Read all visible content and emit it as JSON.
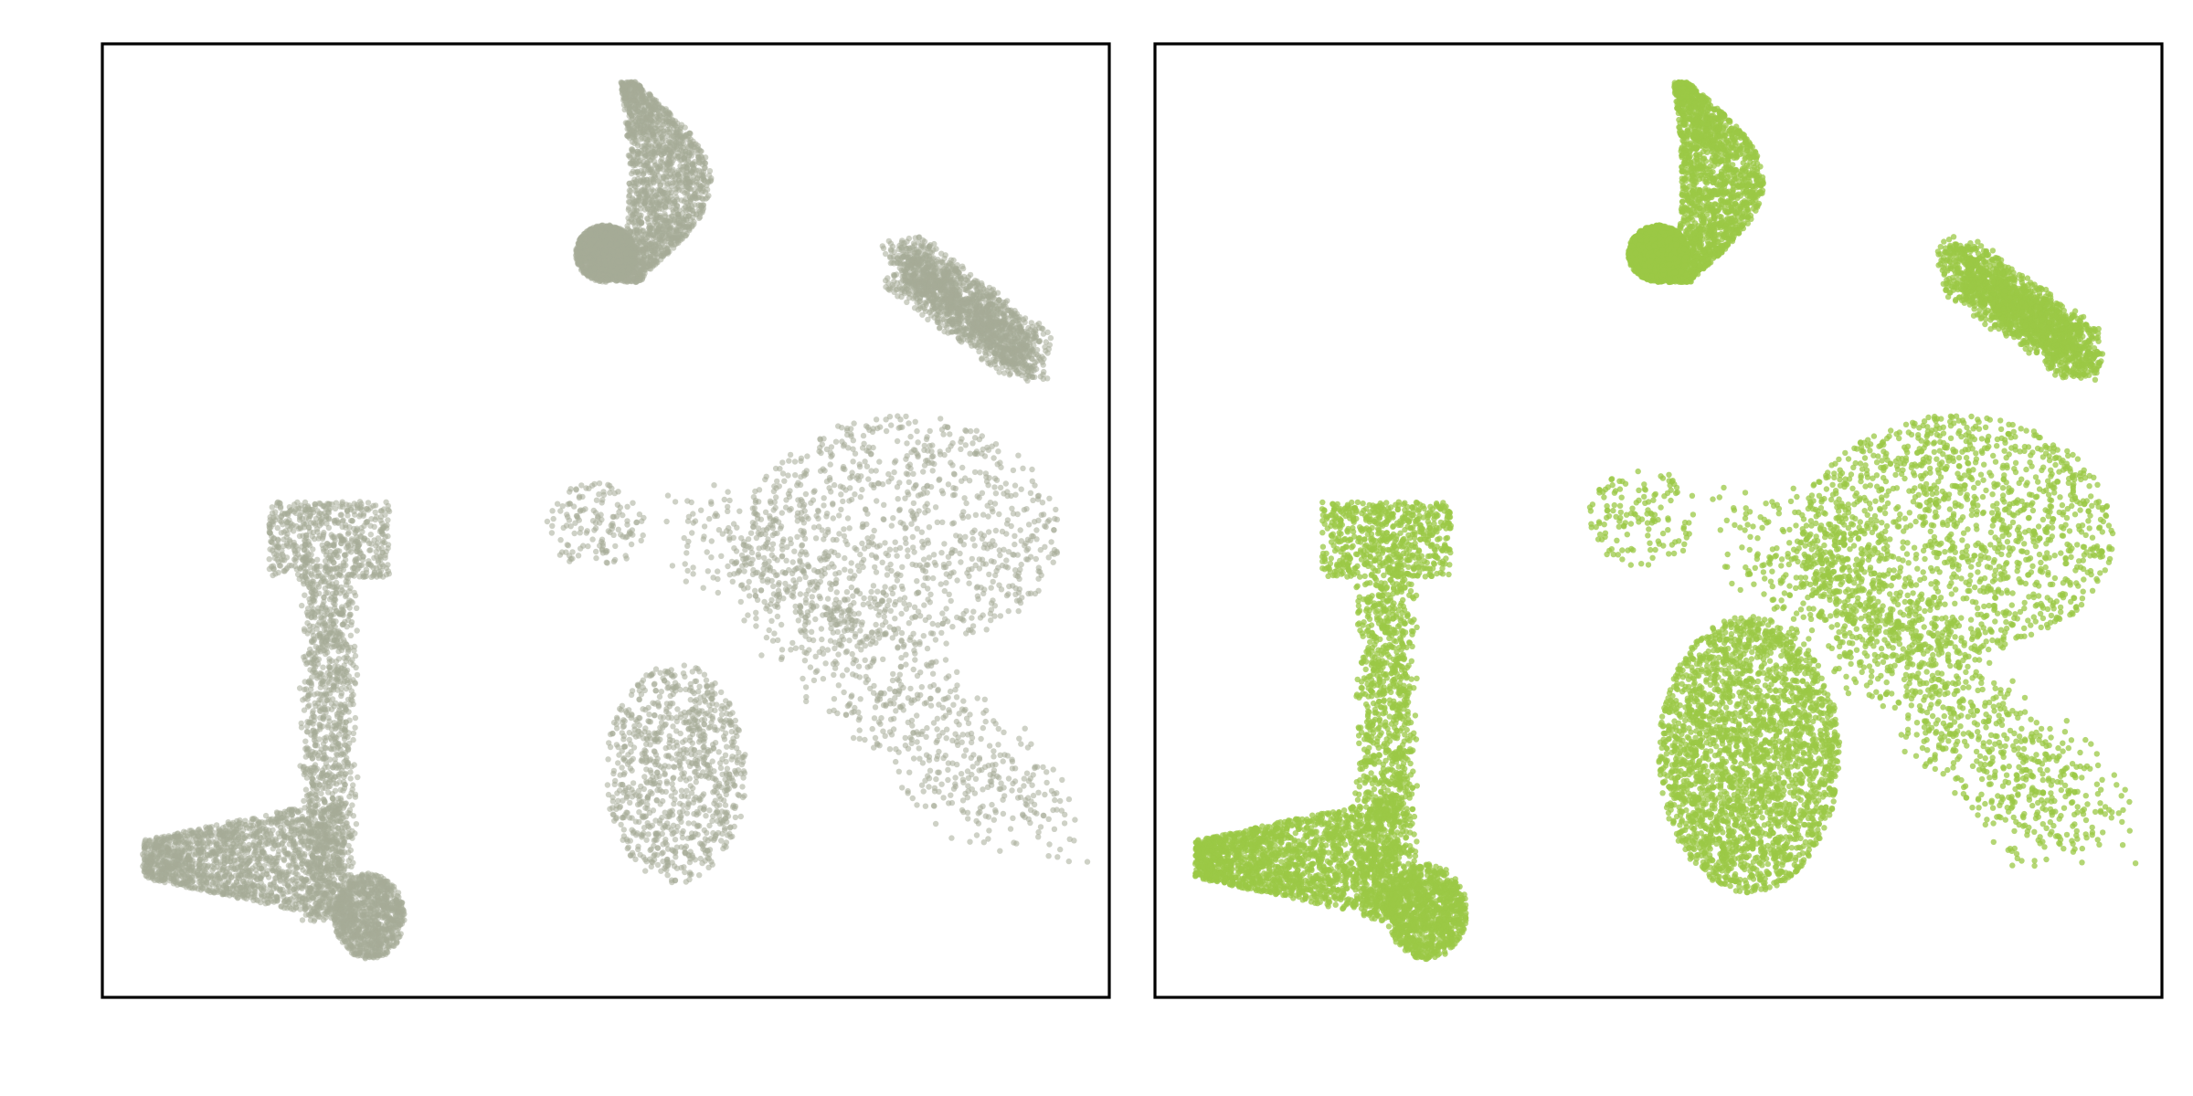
{
  "chart_data": [
    {
      "type": "scatter",
      "title": "",
      "xlabel": "",
      "ylabel": "",
      "xlim": [
        0,
        100
      ],
      "ylim": [
        0,
        100
      ],
      "grid": false,
      "axes_ticks": false,
      "point_color": "#a5ab97",
      "point_opacity": 0.55,
      "series": [
        {
          "clusters": [
            {
              "shape": "top-crescent",
              "x": [
                48,
                60
              ],
              "y": [
                75,
                96
              ],
              "density": "dense"
            },
            {
              "shape": "top-crescent-tail",
              "x": [
                47,
                53
              ],
              "y": [
                75,
                81
              ],
              "density": "dense"
            },
            {
              "shape": "upper-right-arm",
              "x": [
                77,
                94
              ],
              "y": [
                60,
                78
              ],
              "density": "dense"
            },
            {
              "shape": "right-main-lobe",
              "x": [
                55,
                96
              ],
              "y": [
                15,
                62
              ],
              "density": "dense"
            },
            {
              "shape": "middle-lower-oval",
              "x": [
                50,
                64
              ],
              "y": [
                12,
                35
              ],
              "density": "medium"
            },
            {
              "shape": "small-islands",
              "x": [
                44,
                54
              ],
              "y": [
                45,
                54
              ],
              "density": "sparse"
            },
            {
              "shape": "left-column",
              "x": [
                15,
                30
              ],
              "y": [
                8,
                52
              ],
              "density": "dense"
            },
            {
              "shape": "bottom-left-fan",
              "x": [
                4,
                24
              ],
              "y": [
                8,
                21
              ],
              "density": "dense"
            },
            {
              "shape": "bottom-small-hook",
              "x": [
                23,
                30
              ],
              "y": [
                4,
                13
              ],
              "density": "medium"
            }
          ]
        }
      ]
    },
    {
      "type": "scatter",
      "title": "",
      "xlabel": "",
      "ylabel": "",
      "xlim": [
        0,
        100
      ],
      "ylim": [
        0,
        100
      ],
      "grid": false,
      "axes_ticks": false,
      "point_color": "#9bc846",
      "point_opacity": 0.75,
      "series": [
        {
          "clusters": [
            {
              "shape": "top-crescent",
              "x": [
                48,
                60
              ],
              "y": [
                75,
                96
              ],
              "density": "dense"
            },
            {
              "shape": "top-crescent-tail",
              "x": [
                47,
                53
              ],
              "y": [
                75,
                81
              ],
              "density": "dense"
            },
            {
              "shape": "upper-right-arm",
              "x": [
                77,
                94
              ],
              "y": [
                60,
                78
              ],
              "density": "dense"
            },
            {
              "shape": "right-main-lobe",
              "x": [
                55,
                96
              ],
              "y": [
                14,
                62
              ],
              "density": "very-dense"
            },
            {
              "shape": "middle-lower-oval",
              "x": [
                50,
                68
              ],
              "y": [
                11,
                40
              ],
              "density": "very-dense"
            },
            {
              "shape": "small-islands",
              "x": [
                43,
                54
              ],
              "y": [
                45,
                56
              ],
              "density": "sparse"
            },
            {
              "shape": "left-column",
              "x": [
                15,
                31
              ],
              "y": [
                8,
                52
              ],
              "density": "dense"
            },
            {
              "shape": "bottom-left-fan",
              "x": [
                4,
                24
              ],
              "y": [
                8,
                21
              ],
              "density": "dense"
            },
            {
              "shape": "bottom-small-hook",
              "x": [
                23,
                31
              ],
              "y": [
                4,
                14
              ],
              "density": "medium"
            }
          ]
        }
      ]
    }
  ]
}
